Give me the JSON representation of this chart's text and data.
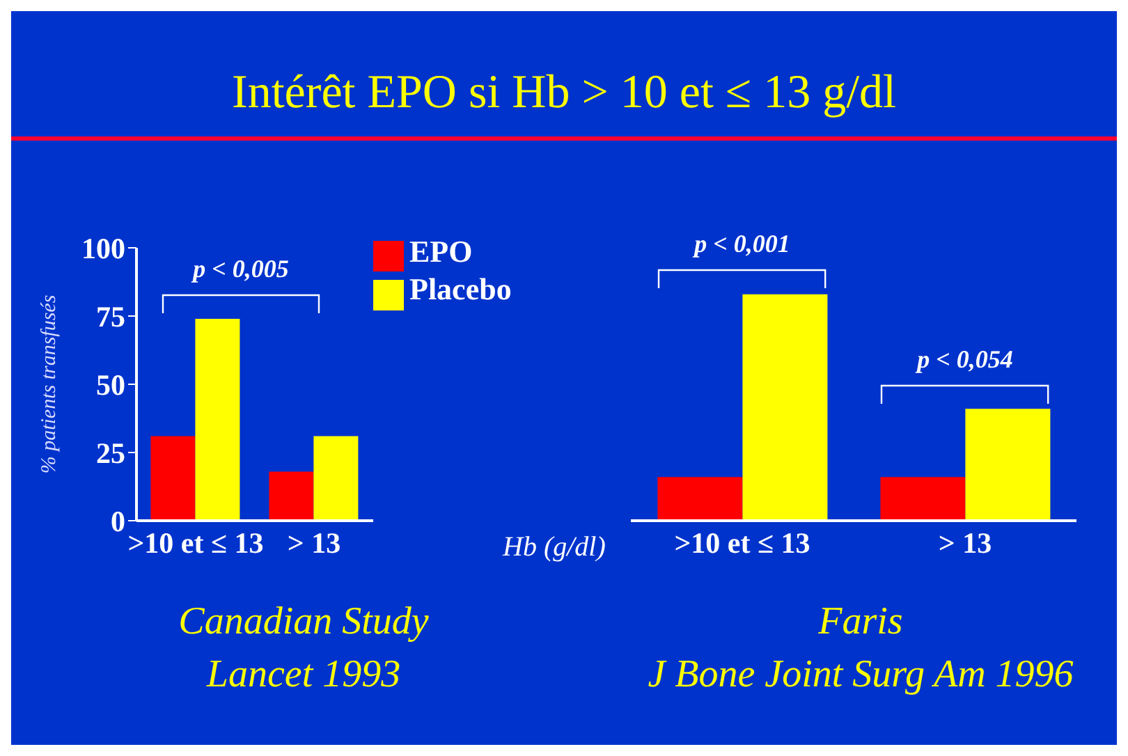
{
  "chart_data": [
    {
      "type": "bar",
      "title": "Intérêt EPO si Hb > 10 et ≤ 13 g/dl",
      "subtitle": "Canadian Study\nLancet 1993",
      "ylabel": "% patients transfusés",
      "categories": [
        ">10 et ≤ 13",
        "> 13"
      ],
      "series": [
        {
          "name": "EPO",
          "color": "#ff0000",
          "values": [
            31,
            18
          ]
        },
        {
          "name": "Placebo",
          "color": "#ffff00",
          "values": [
            74,
            31
          ]
        }
      ],
      "ylim": [
        0,
        100
      ],
      "yticks": [
        0,
        25,
        50,
        75,
        100
      ],
      "legend": "top right",
      "annotations": [
        "p < 0,005"
      ]
    },
    {
      "type": "bar",
      "subtitle": "Faris\nJ Bone Joint Surg Am 1996",
      "xlabel": "Hb (g/dl)",
      "categories": [
        ">10 et ≤ 13",
        "> 13"
      ],
      "series": [
        {
          "color": "#ff0000",
          "values": [
            16,
            16
          ]
        },
        {
          "color": "#ffff00",
          "values": [
            83,
            41
          ]
        }
      ],
      "ylim": [
        0,
        100
      ],
      "tick_labels": "x",
      "annotations": [
        "p < 0,001",
        "p < 0,054"
      ]
    }
  ]
}
